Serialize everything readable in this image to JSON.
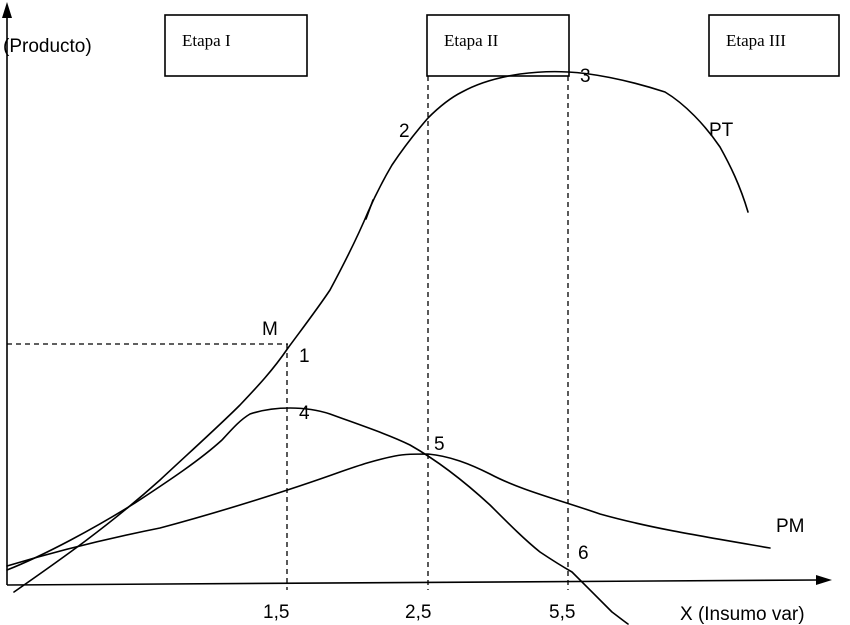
{
  "stages": {
    "stage_1": "Etapa I",
    "stage_2": "Etapa II",
    "stage_3": "Etapa III"
  },
  "axes": {
    "y_label": "(Producto)",
    "x_label": "X (Insumo var)",
    "x_ticks": [
      "1,5",
      "2,5",
      "5,5"
    ]
  },
  "curves": {
    "total_product": "PT",
    "average_product": "PM"
  },
  "points": {
    "m": "M",
    "p1": "1",
    "p2": "2",
    "p3": "3",
    "p4": "4",
    "p5": "5",
    "p6": "6"
  }
}
